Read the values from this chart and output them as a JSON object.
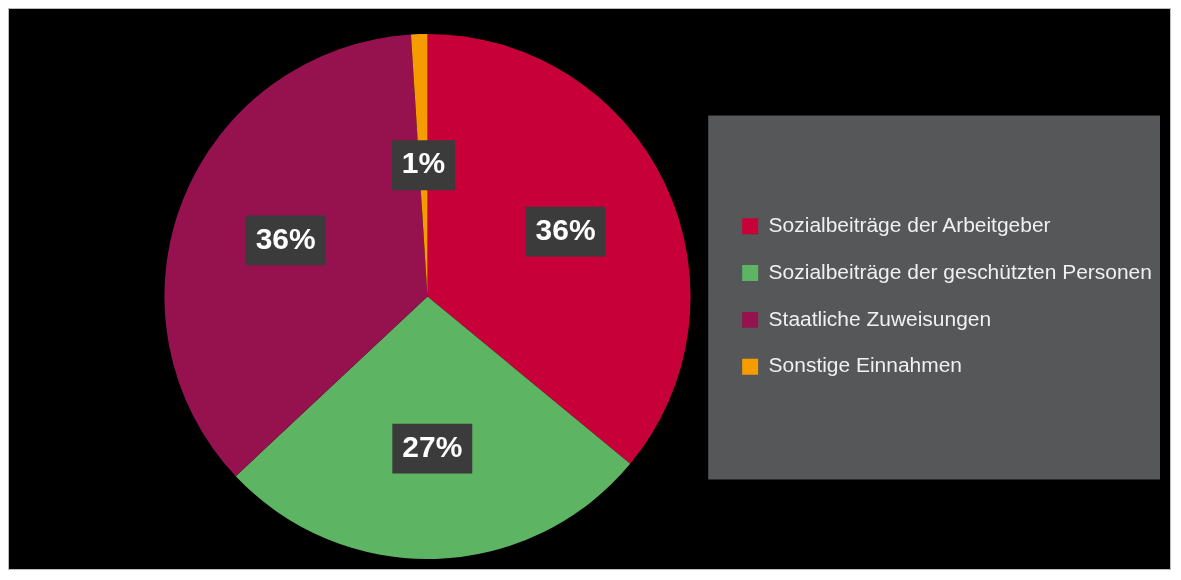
{
  "chart_data": {
    "type": "pie",
    "categories": [
      "Sozialbeiträge der Arbeitgeber",
      "Sozialbeiträge der geschützten Personen",
      "Staatliche Zuweisungen",
      "Sonstige Einnahmen"
    ],
    "values": [
      36,
      27,
      36,
      1
    ],
    "colors": [
      "#c8003a",
      "#5db463",
      "#96124f",
      "#f59c00"
    ],
    "value_labels": [
      "36%",
      "27%",
      "36%",
      "1%"
    ],
    "legend": "right"
  }
}
